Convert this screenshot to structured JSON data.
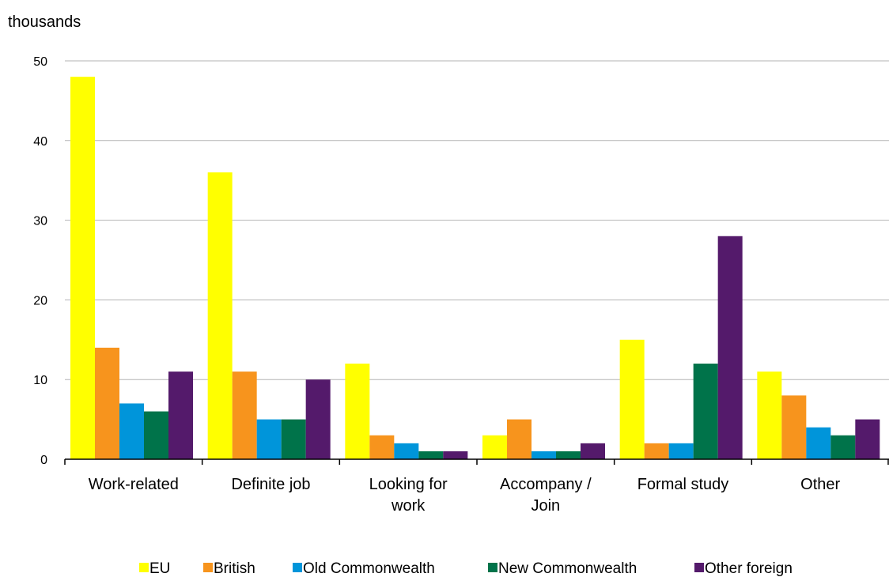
{
  "chart_data": {
    "type": "bar",
    "title": "",
    "xlabel": "",
    "ylabel": "thousands",
    "ylim": [
      0,
      50
    ],
    "yticks": [
      0,
      10,
      20,
      30,
      40,
      50
    ],
    "grid": "horizontal",
    "legend_position": "bottom",
    "categories": [
      [
        "Work-related"
      ],
      [
        "Definite job"
      ],
      [
        "Looking for",
        "work"
      ],
      [
        "Accompany /",
        "Join"
      ],
      [
        "Formal study"
      ],
      [
        "Other"
      ]
    ],
    "series": [
      {
        "name": "EU",
        "color": "#ffff00",
        "values": [
          48,
          36,
          12,
          3,
          15,
          11
        ]
      },
      {
        "name": "British",
        "color": "#f7941d",
        "values": [
          14,
          11,
          3,
          5,
          2,
          8
        ]
      },
      {
        "name": "Old Commonwealth",
        "color": "#0095da",
        "values": [
          7,
          5,
          2,
          1,
          2,
          4
        ]
      },
      {
        "name": "New Commonwealth",
        "color": "#00734a",
        "values": [
          6,
          5,
          1,
          1,
          12,
          3
        ]
      },
      {
        "name": "Other foreign",
        "color": "#541a6b",
        "values": [
          11,
          10,
          1,
          2,
          28,
          5
        ]
      }
    ]
  }
}
